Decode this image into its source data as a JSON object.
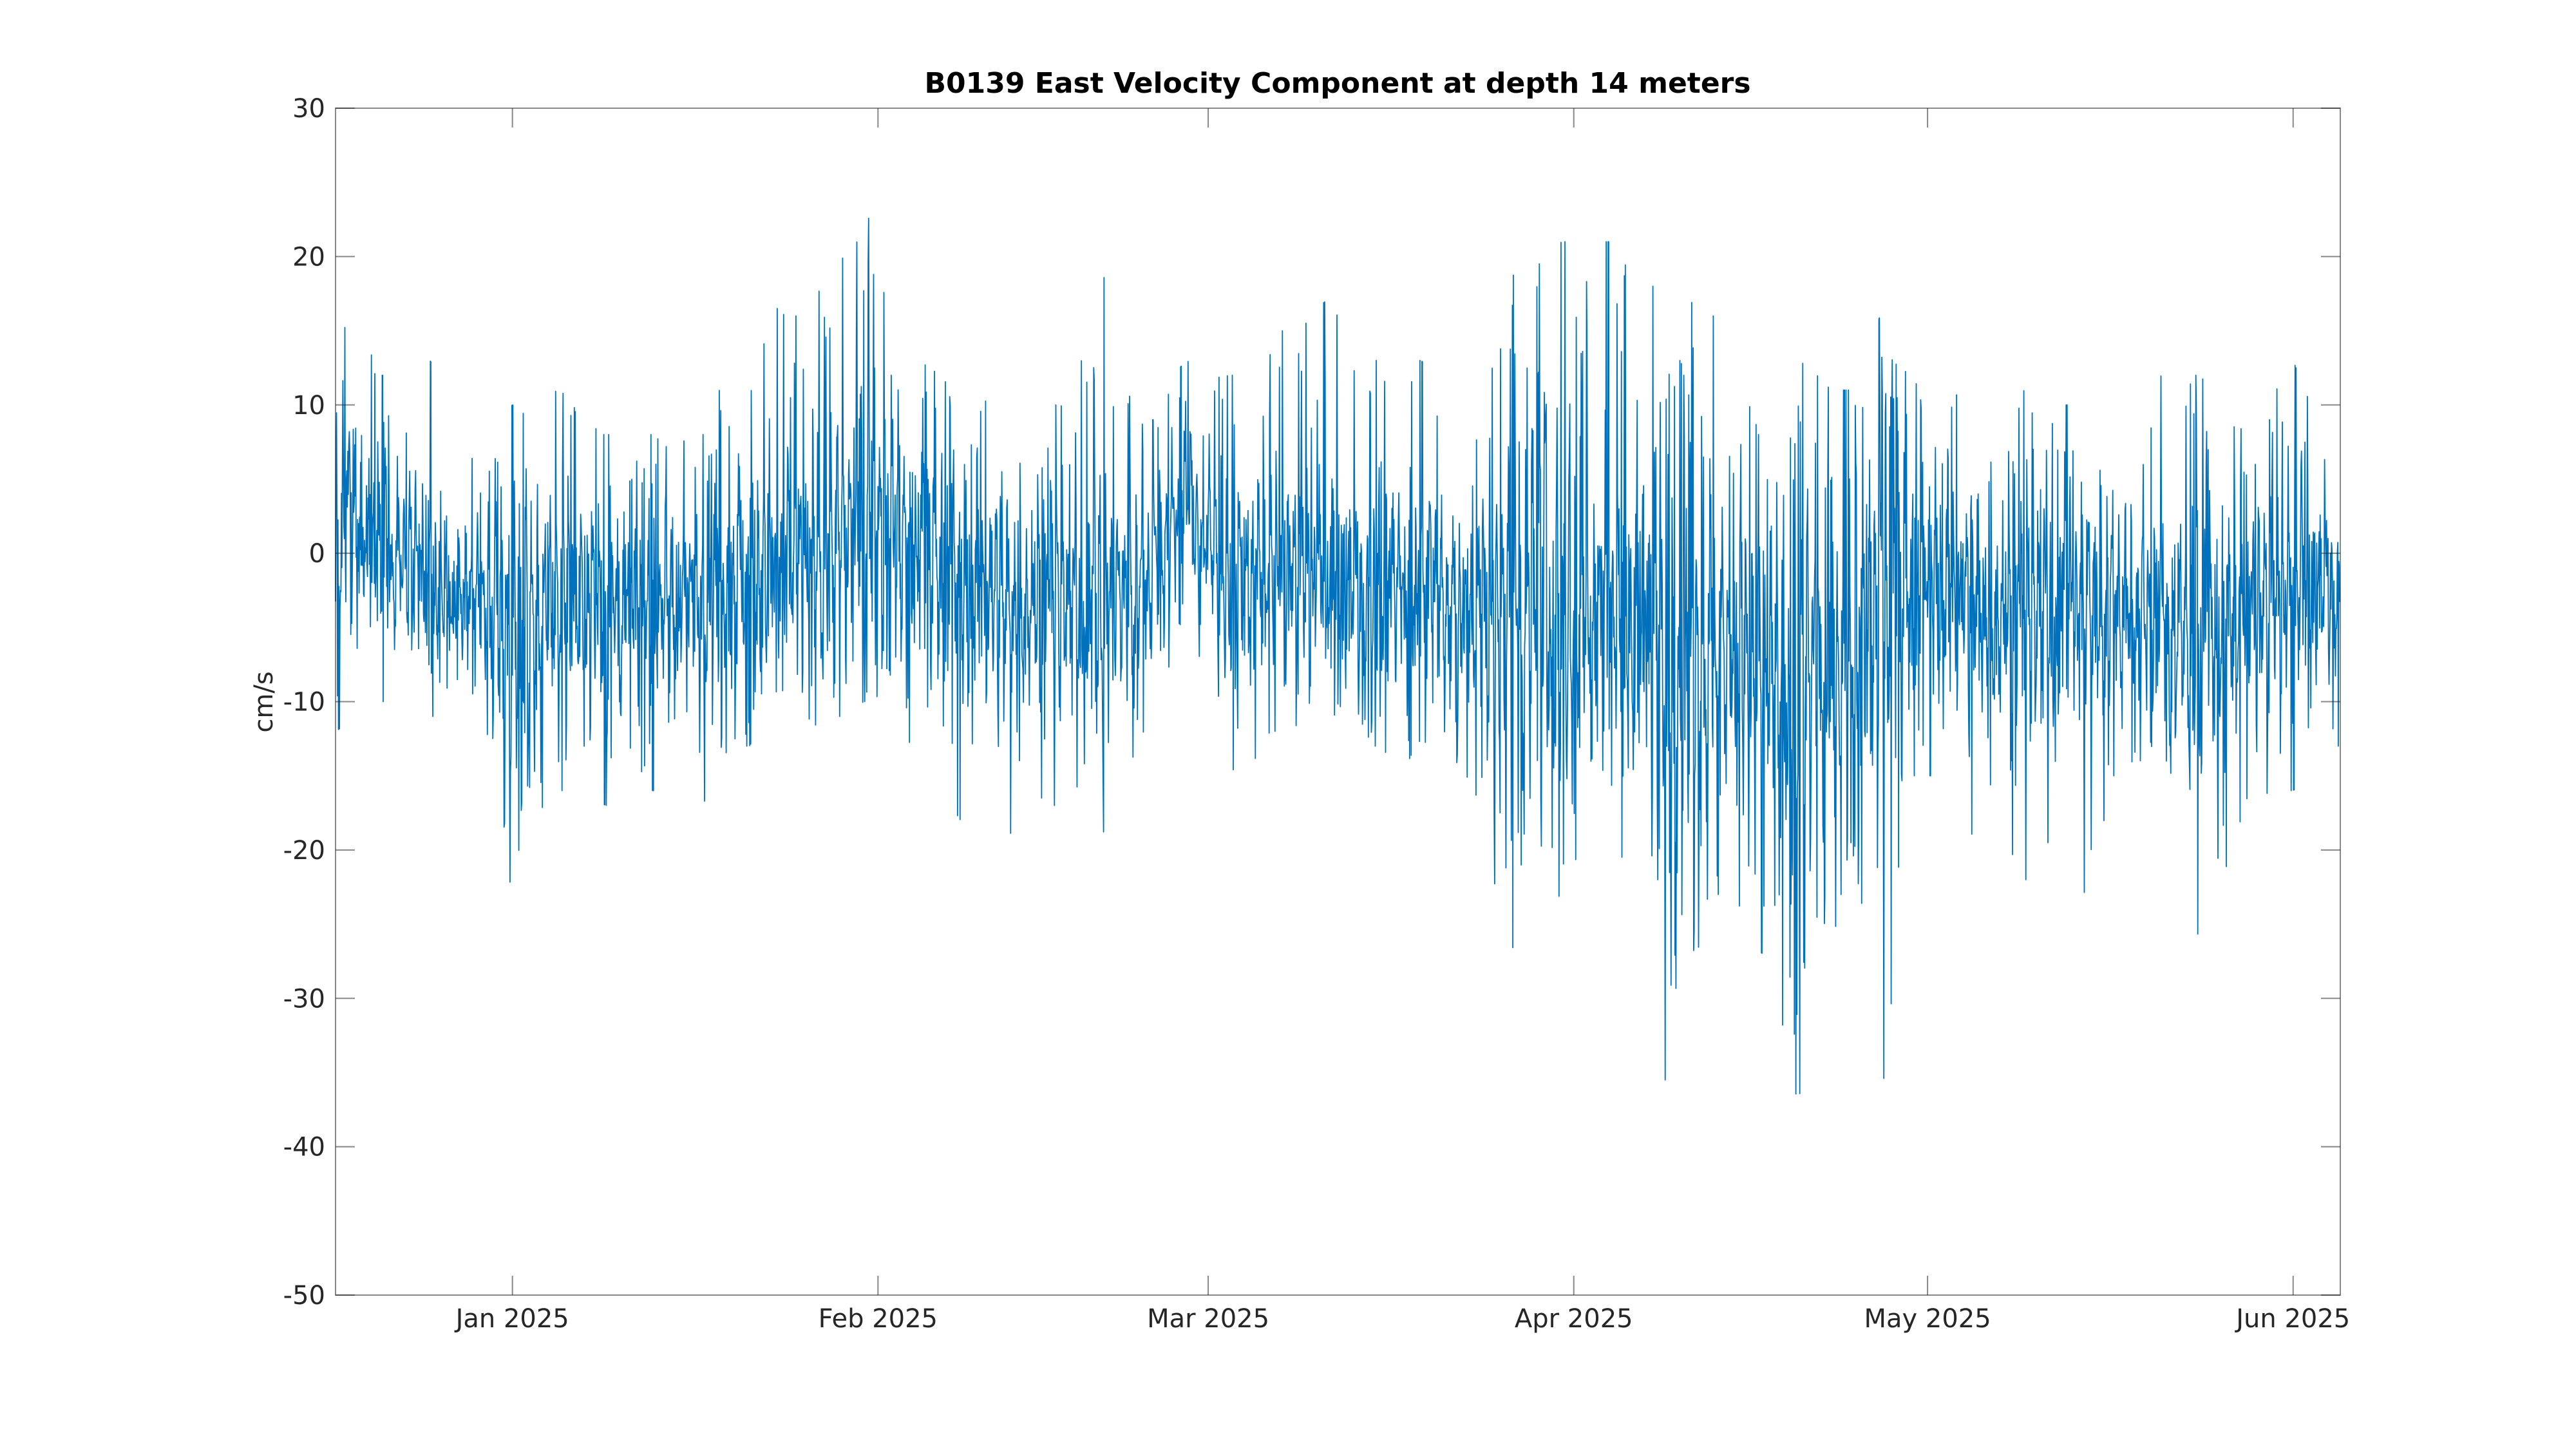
{
  "chart_data": {
    "type": "line",
    "title": "B0139 East Velocity Component at depth 14 meters",
    "xlabel": "",
    "ylabel": "cm/s",
    "x_start": "2024-12-17",
    "x_end": "2025-06-05",
    "xlim": [
      "2024-12-17",
      "2025-06-05"
    ],
    "ylim": [
      -50,
      30
    ],
    "yticks": [
      30,
      20,
      10,
      0,
      -10,
      -20,
      -30,
      -40,
      -50
    ],
    "xticks": [
      {
        "date": "2025-01-01",
        "label": "Jan 2025"
      },
      {
        "date": "2025-02-01",
        "label": "Feb 2025"
      },
      {
        "date": "2025-03-01",
        "label": "Mar 2025"
      },
      {
        "date": "2025-04-01",
        "label": "Apr 2025"
      },
      {
        "date": "2025-05-01",
        "label": "May 2025"
      },
      {
        "date": "2025-06-01",
        "label": "Jun 2025"
      }
    ],
    "grid": false,
    "legend": "none",
    "series": [
      {
        "color": "#0072BD",
        "profile": [
          {
            "x": "2024-12-17",
            "y": 2,
            "min": -12,
            "max": 19
          },
          {
            "x": "2024-12-21",
            "y": 0,
            "min": -10,
            "max": 12
          },
          {
            "x": "2024-12-25",
            "y": -1,
            "min": -11,
            "max": 13
          },
          {
            "x": "2024-12-29",
            "y": -4,
            "min": -11,
            "max": 8
          },
          {
            "x": "2025-01-01",
            "y": -6,
            "min": -23,
            "max": 10
          },
          {
            "x": "2025-01-05",
            "y": -3,
            "min": -16,
            "max": 11
          },
          {
            "x": "2025-01-09",
            "y": -3,
            "min": -17,
            "max": 8
          },
          {
            "x": "2025-01-13",
            "y": -4,
            "min": -16,
            "max": 8
          },
          {
            "x": "2025-01-17",
            "y": -3,
            "min": -17,
            "max": 8
          },
          {
            "x": "2025-01-21",
            "y": -1,
            "min": -13,
            "max": 18
          },
          {
            "x": "2025-01-25",
            "y": -1,
            "min": -12,
            "max": 16
          },
          {
            "x": "2025-01-29",
            "y": 1,
            "min": -11,
            "max": 20
          },
          {
            "x": "2025-01-31",
            "y": 3,
            "min": -10,
            "max": 23
          },
          {
            "x": "2025-02-04",
            "y": 1,
            "min": -13,
            "max": 15
          },
          {
            "x": "2025-02-08",
            "y": -2,
            "min": -18,
            "max": 12
          },
          {
            "x": "2025-02-12",
            "y": -3,
            "min": -19,
            "max": 10
          },
          {
            "x": "2025-02-16",
            "y": -3,
            "min": -17,
            "max": 10
          },
          {
            "x": "2025-02-20",
            "y": -4,
            "min": -19,
            "max": 19
          },
          {
            "x": "2025-02-24",
            "y": -2,
            "min": -12,
            "max": 9
          },
          {
            "x": "2025-02-27",
            "y": 4,
            "min": -5,
            "max": 13
          },
          {
            "x": "2025-03-03",
            "y": -2,
            "min": -16,
            "max": 12
          },
          {
            "x": "2025-03-07",
            "y": -1,
            "min": -12,
            "max": 15
          },
          {
            "x": "2025-03-11",
            "y": -2,
            "min": -13,
            "max": 17
          },
          {
            "x": "2025-03-15",
            "y": -3,
            "min": -13,
            "max": 13
          },
          {
            "x": "2025-03-19",
            "y": -2,
            "min": -15,
            "max": 13
          },
          {
            "x": "2025-03-23",
            "y": -4,
            "min": -17,
            "max": 11
          },
          {
            "x": "2025-03-27",
            "y": -3,
            "min": -27,
            "max": 19
          },
          {
            "x": "2025-03-31",
            "y": -4,
            "min": -24,
            "max": 21
          },
          {
            "x": "2025-04-04",
            "y": -4,
            "min": -21,
            "max": 21
          },
          {
            "x": "2025-04-08",
            "y": -5,
            "min": -22,
            "max": 18
          },
          {
            "x": "2025-04-09",
            "y": -8,
            "min": -40,
            "max": 21
          },
          {
            "x": "2025-04-13",
            "y": -6,
            "min": -23,
            "max": 16
          },
          {
            "x": "2025-04-17",
            "y": -9,
            "min": -27,
            "max": 8
          },
          {
            "x": "2025-04-20",
            "y": -11,
            "min": -37,
            "max": 14
          },
          {
            "x": "2025-04-24",
            "y": -7,
            "min": -23,
            "max": 11
          },
          {
            "x": "2025-04-27",
            "y": -3,
            "min": -37,
            "max": 16
          },
          {
            "x": "2025-05-01",
            "y": -2,
            "min": -15,
            "max": 12
          },
          {
            "x": "2025-05-05",
            "y": -3,
            "min": -20,
            "max": 11
          },
          {
            "x": "2025-05-09",
            "y": -4,
            "min": -22,
            "max": 11
          },
          {
            "x": "2025-05-13",
            "y": -4,
            "min": -30,
            "max": 10
          },
          {
            "x": "2025-05-17",
            "y": -3,
            "min": -15,
            "max": 11
          },
          {
            "x": "2025-05-21",
            "y": -4,
            "min": -14,
            "max": 12
          },
          {
            "x": "2025-05-24",
            "y": -7,
            "min": -26,
            "max": 12
          },
          {
            "x": "2025-05-28",
            "y": -4,
            "min": -18,
            "max": 9
          },
          {
            "x": "2025-06-01",
            "y": -3,
            "min": -16,
            "max": 13
          },
          {
            "x": "2025-06-05",
            "y": -2,
            "min": -13,
            "max": 5
          }
        ]
      }
    ]
  }
}
